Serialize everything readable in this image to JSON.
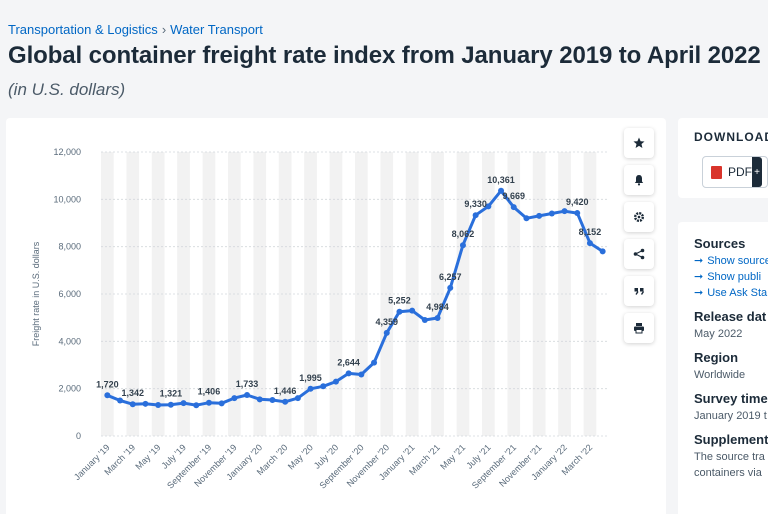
{
  "breadcrumb": {
    "category": "Transportation & Logistics",
    "separator": "›",
    "subcategory": "Water Transport"
  },
  "title": "Global container freight rate index from January 2019 to April 2022",
  "subtitle": "(in U.S. dollars)",
  "toolbar": {
    "icons": [
      "star-icon",
      "bell-icon",
      "gear-icon",
      "share-icon",
      "quote-icon",
      "print-icon"
    ]
  },
  "download": {
    "title": "DOWNLOAD",
    "pdf_label": "PDF",
    "plus_label": "+"
  },
  "info": {
    "sources_heading": "Sources",
    "links": [
      "Show source",
      "Show publi",
      "Use Ask Sta"
    ],
    "release_heading": "Release dat",
    "release_value": "May 2022",
    "region_heading": "Region",
    "region_value": "Worldwide",
    "survey_heading": "Survey time",
    "survey_value": "January 2019 t",
    "supplement_heading": "Supplement",
    "supplement_line1": "The source tra",
    "supplement_line2": "containers via"
  },
  "colors": {
    "line": "#2a6fdb",
    "link": "#0067c5",
    "band": "#f2f2f2"
  },
  "chart_data": {
    "type": "line",
    "ylabel": "Freight rate in U.S. dollars",
    "ylim": [
      0,
      12000
    ],
    "yticks": [
      0,
      2000,
      4000,
      6000,
      8000,
      10000,
      12000
    ],
    "ytick_labels": [
      "0",
      "2,000",
      "4,000",
      "6,000",
      "8,000",
      "10,000",
      "12,000"
    ],
    "x": [
      "Jan '19",
      "Feb '19",
      "Mar '19",
      "Apr '19",
      "May '19",
      "Jun '19",
      "Jul '19",
      "Aug '19",
      "Sep '19",
      "Oct '19",
      "Nov '19",
      "Dec '19",
      "Jan '20",
      "Feb '20",
      "Mar '20",
      "Apr '20",
      "May '20",
      "Jun '20",
      "Jul '20",
      "Aug '20",
      "Sep '20",
      "Oct '20",
      "Nov '20",
      "Dec '20",
      "Jan '21",
      "Feb '21",
      "Mar '21",
      "Apr '21",
      "May '21",
      "Jun '21",
      "Jul '21",
      "Aug '21",
      "Sep '21",
      "Oct '21",
      "Nov '21",
      "Dec '21",
      "Jan '22",
      "Feb '22",
      "Mar '22",
      "Apr '22"
    ],
    "xtick_labels": [
      "January '19",
      "March '19",
      "May '19",
      "July '19",
      "September '19",
      "November '19",
      "January '20",
      "March '20",
      "May '20",
      "July '20",
      "September '20",
      "November '20",
      "January '21",
      "March '21",
      "May '21",
      "July '21",
      "September '21",
      "November '21",
      "January '22",
      "March '22"
    ],
    "values": [
      1720,
      1500,
      1342,
      1360,
      1310,
      1321,
      1390,
      1300,
      1406,
      1380,
      1600,
      1733,
      1550,
      1520,
      1446,
      1600,
      1995,
      2100,
      2300,
      2644,
      2600,
      3100,
      4359,
      5252,
      5300,
      4900,
      4984,
      6257,
      8062,
      9330,
      9700,
      10361,
      9669,
      9200,
      9300,
      9400,
      9500,
      9420,
      8152,
      7800
    ],
    "labels": [
      {
        "i": 0,
        "text": "1,720"
      },
      {
        "i": 2,
        "text": "1,342"
      },
      {
        "i": 5,
        "text": "1,321"
      },
      {
        "i": 8,
        "text": "1,406"
      },
      {
        "i": 11,
        "text": "1,733"
      },
      {
        "i": 14,
        "text": "1,446"
      },
      {
        "i": 16,
        "text": "1,995"
      },
      {
        "i": 19,
        "text": "2,644"
      },
      {
        "i": 22,
        "text": "4,359"
      },
      {
        "i": 23,
        "text": "5,252"
      },
      {
        "i": 26,
        "text": "4,984"
      },
      {
        "i": 27,
        "text": "6,257"
      },
      {
        "i": 28,
        "text": "8,062"
      },
      {
        "i": 29,
        "text": "9,330"
      },
      {
        "i": 31,
        "text": "10,361"
      },
      {
        "i": 32,
        "text": "9,669"
      },
      {
        "i": 37,
        "text": "9,420"
      },
      {
        "i": 38,
        "text": "8,152"
      }
    ],
    "grid": true
  }
}
